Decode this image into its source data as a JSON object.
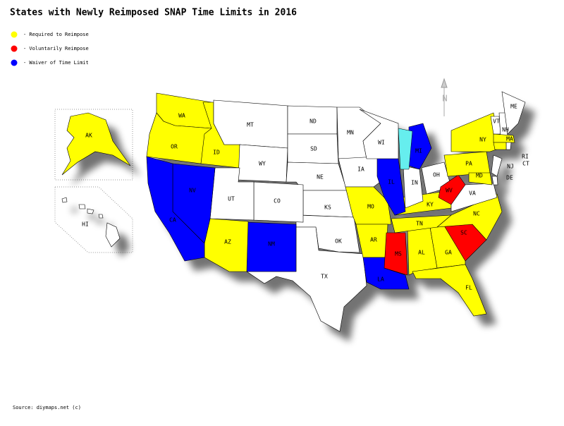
{
  "title": "States with Newly Reimposed SNAP Time Limits in 2016",
  "legend": [
    {
      "label": "- Required to Reimpose",
      "color": "#ffff00"
    },
    {
      "label": "- Voluntarily Reimpose",
      "color": "#ff0000"
    },
    {
      "label": "- Waiver of Time Limit",
      "color": "#0000ff"
    }
  ],
  "states": [
    {
      "label": "WA",
      "color": "#ffff00"
    },
    {
      "label": "OR",
      "color": "#ffff00"
    },
    {
      "label": "ID",
      "color": "#ffff00"
    },
    {
      "label": "MT",
      "color": "#ffffff"
    },
    {
      "label": "WY",
      "color": "#ffffff"
    },
    {
      "label": "ND",
      "color": "#ffffff"
    },
    {
      "label": "SD",
      "color": "#ffffff"
    },
    {
      "label": "NE",
      "color": "#ffffff"
    },
    {
      "label": "KS",
      "color": "#ffffff"
    },
    {
      "label": "OK",
      "color": "#ffffff"
    },
    {
      "label": "TX",
      "color": "#ffffff"
    },
    {
      "label": "NM",
      "color": "#0000ff"
    },
    {
      "label": "CO",
      "color": "#ffffff"
    },
    {
      "label": "UT",
      "color": "#ffffff"
    },
    {
      "label": "AZ",
      "color": "#ffff00"
    },
    {
      "label": "NV",
      "color": "#0000ff"
    },
    {
      "label": "CA",
      "color": "#0000ff"
    },
    {
      "label": "MN",
      "color": "#ffffff"
    },
    {
      "label": "IA",
      "color": "#ffffff"
    },
    {
      "label": "MO",
      "color": "#ffff00"
    },
    {
      "label": "AR",
      "color": "#ffff00"
    },
    {
      "label": "LA",
      "color": "#0000ff"
    },
    {
      "label": "MS",
      "color": "#ff0000"
    },
    {
      "label": "AL",
      "color": "#ffff00"
    },
    {
      "label": "GA",
      "color": "#ffff00"
    },
    {
      "label": "FL",
      "color": "#ffff00"
    },
    {
      "label": "SC",
      "color": "#ff0000"
    },
    {
      "label": "NC",
      "color": "#ffff00"
    },
    {
      "label": "TN",
      "color": "#ffff00"
    },
    {
      "label": "KY",
      "color": "#ffff00"
    },
    {
      "label": "IL",
      "color": "#0000ff"
    },
    {
      "label": "WI",
      "color": "#ffffff"
    },
    {
      "label": "MI",
      "color": "#0000ff"
    },
    {
      "label": "IN",
      "color": "#ffffff"
    },
    {
      "label": "OH",
      "color": "#ffffff"
    },
    {
      "label": "WV",
      "color": "#ff0000"
    },
    {
      "label": "VA",
      "color": "#ffffff"
    },
    {
      "label": "PA",
      "color": "#ffff00"
    },
    {
      "label": "NY",
      "color": "#ffff00"
    },
    {
      "label": "MD",
      "color": "#ffff00"
    },
    {
      "label": "NJ",
      "color": "#ffffff"
    },
    {
      "label": "DE",
      "color": "#ffffff"
    },
    {
      "label": "VT",
      "color": "#ffffff"
    },
    {
      "label": "NH",
      "color": "#ffffff"
    },
    {
      "label": "ME",
      "color": "#ffffff"
    },
    {
      "label": "MA",
      "color": "#ffff00"
    },
    {
      "label": "RI",
      "color": "#ffffff"
    },
    {
      "label": "CT",
      "color": "#ffff00"
    },
    {
      "label": "AK",
      "color": "#ffff00"
    },
    {
      "label": "HI",
      "color": "#ffffff"
    }
  ],
  "compass": "N",
  "source": "Source: diymaps.net (c)"
}
